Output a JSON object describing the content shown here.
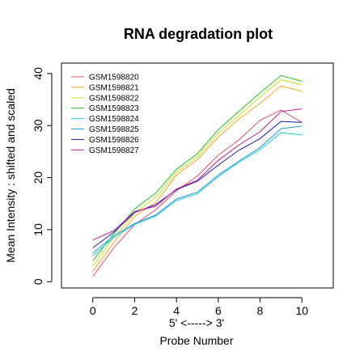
{
  "chart_data": {
    "type": "line",
    "title": "RNA degradation plot",
    "xlabel_line1": "5' <-----> 3'",
    "xlabel_line2": "Probe Number",
    "ylabel": "Mean Intensity : shifted and scaled",
    "xlim": [
      -1.5,
      11.5
    ],
    "ylim": [
      -1.2,
      42
    ],
    "x_ticks": [
      "0",
      "2",
      "4",
      "6",
      "8",
      "10"
    ],
    "y_ticks": [
      "0",
      "10",
      "20",
      "30",
      "40"
    ],
    "grid": false,
    "legend_position": "top-left",
    "x": [
      0,
      1,
      2,
      3,
      4,
      5,
      6,
      7,
      8,
      9,
      10
    ],
    "series": [
      {
        "name": "GSM1598820",
        "color": "#df536b",
        "values": [
          1.0,
          6.5,
          11.0,
          13.8,
          17.5,
          20.3,
          24.3,
          27.3,
          31.0,
          33.0,
          30.6
        ]
      },
      {
        "name": "GSM1598821",
        "color": "#f5a623",
        "values": [
          2.0,
          7.5,
          12.6,
          15.2,
          20.5,
          23.5,
          27.8,
          31.3,
          34.3,
          37.6,
          36.6
        ]
      },
      {
        "name": "GSM1598822",
        "color": "#cde11a",
        "values": [
          3.0,
          8.5,
          13.2,
          16.2,
          21.0,
          24.0,
          28.5,
          32.0,
          35.5,
          38.8,
          37.8
        ]
      },
      {
        "name": "GSM1598823",
        "color": "#1ec51e",
        "values": [
          4.0,
          9.2,
          14.0,
          17.0,
          21.6,
          24.6,
          29.2,
          32.8,
          36.3,
          39.6,
          38.5
        ]
      },
      {
        "name": "GSM1598824",
        "color": "#22cfcf",
        "values": [
          5.0,
          8.5,
          11.0,
          12.6,
          15.6,
          16.9,
          20.2,
          23.0,
          25.4,
          28.6,
          28.2
        ]
      },
      {
        "name": "GSM1598825",
        "color": "#2297e6",
        "values": [
          5.5,
          8.8,
          11.2,
          12.8,
          15.9,
          17.2,
          20.5,
          23.2,
          25.8,
          29.4,
          29.9
        ]
      },
      {
        "name": "GSM1598826",
        "color": "#1a1aa8",
        "values": [
          6.5,
          9.5,
          13.3,
          14.8,
          17.7,
          19.3,
          22.4,
          25.3,
          27.5,
          30.8,
          30.6
        ]
      },
      {
        "name": "GSM1598827",
        "color": "#c4189a",
        "values": [
          8.0,
          9.8,
          13.5,
          14.5,
          17.8,
          19.5,
          23.3,
          26.3,
          28.8,
          32.7,
          33.2
        ]
      }
    ]
  }
}
